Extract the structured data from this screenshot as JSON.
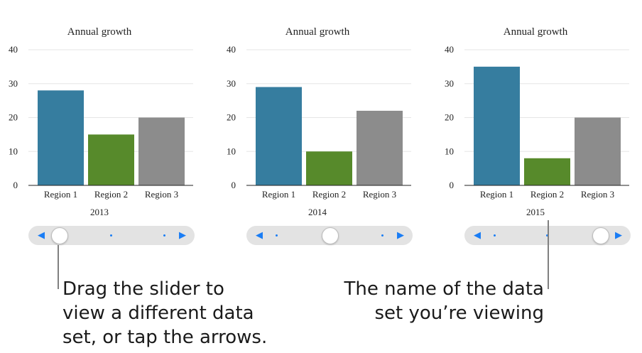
{
  "chart_data": [
    {
      "type": "bar",
      "title": "Annual growth",
      "categories": [
        "Region 1",
        "Region 2",
        "Region 3"
      ],
      "values": [
        28,
        15,
        20
      ],
      "ylim": [
        0,
        40
      ],
      "yticks": [
        "0",
        "10",
        "20",
        "30",
        "40"
      ],
      "dataset": "2013",
      "grid": true,
      "colors": [
        "#367d9f",
        "#578a2b",
        "#8c8c8c"
      ]
    },
    {
      "type": "bar",
      "title": "Annual growth",
      "categories": [
        "Region 1",
        "Region 2",
        "Region 3"
      ],
      "values": [
        29,
        10,
        22
      ],
      "ylim": [
        0,
        40
      ],
      "yticks": [
        "0",
        "10",
        "20",
        "30",
        "40"
      ],
      "dataset": "2014",
      "grid": true,
      "colors": [
        "#367d9f",
        "#578a2b",
        "#8c8c8c"
      ]
    },
    {
      "type": "bar",
      "title": "Annual growth",
      "categories": [
        "Region 1",
        "Region 2",
        "Region 3"
      ],
      "values": [
        35,
        8,
        20
      ],
      "ylim": [
        0,
        40
      ],
      "yticks": [
        "0",
        "10",
        "20",
        "30",
        "40"
      ],
      "dataset": "2015",
      "grid": true,
      "colors": [
        "#367d9f",
        "#578a2b",
        "#8c8c8c"
      ]
    }
  ],
  "sliders": [
    {
      "position": 0.0
    },
    {
      "position": 0.5
    },
    {
      "position": 1.0
    }
  ],
  "callouts": {
    "left": "Drag the slider to\nview a different data\nset, or tap the arrows.",
    "right": "The name of the data\nset you’re viewing"
  },
  "colors": {
    "accent": "#1a7df5",
    "slider_track": "#e3e3e3"
  }
}
